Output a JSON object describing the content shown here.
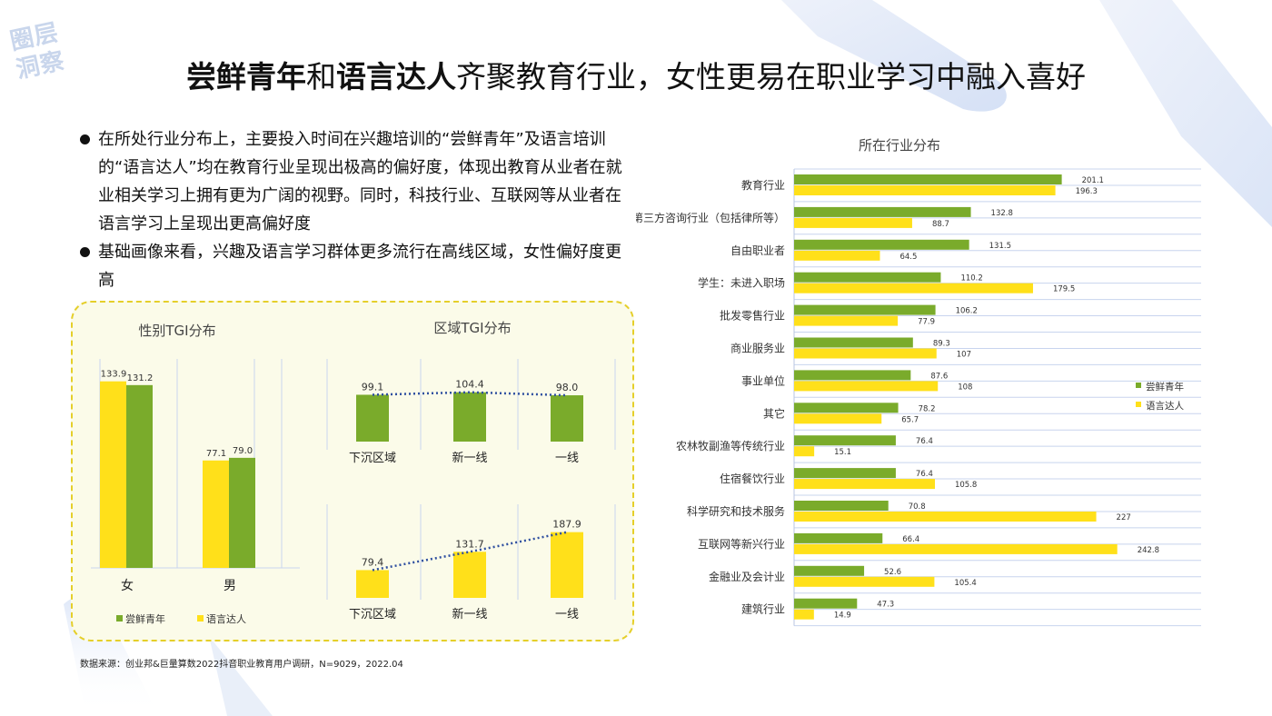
{
  "logo": {
    "line1": "圈层",
    "line2": "洞察"
  },
  "title": {
    "part1": "尝鲜青年",
    "part2": "和",
    "part3": "语言达人",
    "part4": "齐聚教育行业，女性更易在职业学习中融入喜好"
  },
  "bullets": [
    "在所处行业分布上，主要投入时间在兴趣培训的“尝鲜青年”及语言培训的“语言达人”均在教育行业呈现出极高的偏好度，体现出教育从业者在就业相关学习上拥有更为广阔的视野。同时，科技行业、互联网等从业者在语言学习上呈现出更高偏好度",
    "基础画像来看，兴趣及语言学习群体更多流行在高线区域，女性偏好度更高"
  ],
  "source": "数据来源：创业邦&巨量算数2022抖音职业教育用户调研，N=9029，2022.04",
  "colors": {
    "green": "#7aab2b",
    "yellow": "#ffe01a",
    "dotted": "#2e4fa0"
  },
  "chart_data": [
    {
      "type": "bar",
      "title": "性别TGI分布",
      "categories": [
        "女",
        "男"
      ],
      "series": [
        {
          "name": "尝鲜青年",
          "values": [
            131.2,
            79.0
          ],
          "labels": [
            "131.2",
            "79.0"
          ]
        },
        {
          "name": "语言达人",
          "values": [
            133.9,
            77.1
          ],
          "labels": [
            "133.9",
            "77.1"
          ]
        }
      ],
      "ylim": [
        0,
        150
      ]
    },
    {
      "type": "bar",
      "title": "区域TGI分布",
      "categories": [
        "下沉区域",
        "新一线",
        "一线"
      ],
      "series": [
        {
          "name": "尝鲜青年",
          "values": [
            99.1,
            104.4,
            98.0
          ],
          "labels": [
            "99.1",
            "104.4",
            "98.0"
          ]
        }
      ],
      "trendline": true
    },
    {
      "type": "bar",
      "categories": [
        "下沉区域",
        "新一线",
        "一线"
      ],
      "series": [
        {
          "name": "语言达人",
          "values": [
            79.4,
            131.7,
            187.9
          ],
          "labels": [
            "79.4",
            "131.7",
            "187.9"
          ]
        }
      ],
      "trendline": true
    },
    {
      "type": "bar",
      "orientation": "horizontal",
      "title": "所在行业分布",
      "categories": [
        "教育行业",
        "第三方咨询行业（包括律所等）",
        "自由职业者",
        "学生：未进入职场",
        "批发零售行业",
        "商业服务业",
        "事业单位",
        "其它",
        "农林牧副渔等传统行业",
        "住宿餐饮行业",
        "科学研究和技术服务",
        "互联网等新兴行业",
        "金融业及会计业",
        "建筑行业"
      ],
      "series": [
        {
          "name": "尝鲜青年",
          "values": [
            201.1,
            132.8,
            131.5,
            110.2,
            106.2,
            89.3,
            87.6,
            78.2,
            76.4,
            76.4,
            70.8,
            66.4,
            52.6,
            47.3
          ],
          "labels": [
            "201.1",
            "132.8",
            "131.5",
            "110.2",
            "106.2",
            "89.3",
            "87.6",
            "78.2",
            "76.4",
            "76.4",
            "70.8",
            "66.4",
            "52.6",
            "47.3"
          ]
        },
        {
          "name": "语言达人",
          "values": [
            196.3,
            88.7,
            64.5,
            179.5,
            77.9,
            107,
            108,
            65.7,
            15.1,
            105.8,
            227,
            242.8,
            105.4,
            14.9
          ],
          "labels": [
            "196.3",
            "88.7",
            "64.5",
            "179.5",
            "77.9",
            "107",
            "108",
            "65.7",
            "15.1",
            "105.8",
            "227",
            "242.8",
            "105.4",
            "14.9"
          ]
        }
      ],
      "xlim": [
        0,
        300
      ],
      "legend": "right"
    }
  ]
}
